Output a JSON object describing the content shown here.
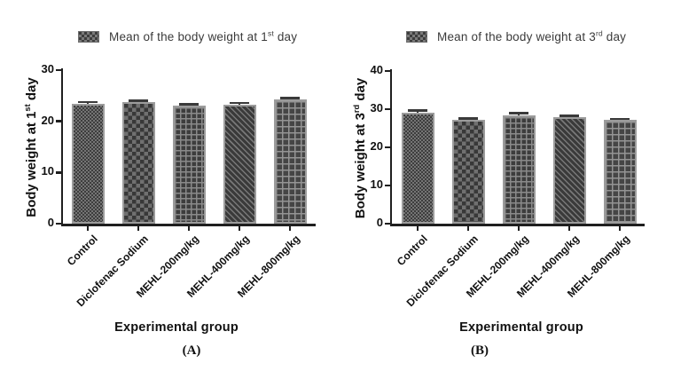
{
  "figure": {
    "background": "#ffffff",
    "panel_labels": [
      "(A)",
      "(B)"
    ]
  },
  "colors": {
    "bar_fill_dark": "#3d3d3d",
    "bar_fill_light": "#757575",
    "bar_border": "#9c9c9c",
    "axis": "#1f1f1f",
    "text": "#111111"
  },
  "patterns": [
    "fine-checker",
    "checkerboard",
    "grid",
    "diagonal-weave",
    "brick"
  ],
  "chart_data": [
    {
      "type": "bar",
      "panel_label": "(A)",
      "legend": {
        "prefix": "Mean of the body weight at 1",
        "sup": "st",
        "suffix": " day"
      },
      "ylabel": {
        "prefix": "Body weight at 1",
        "sup": "st",
        "suffix": " day"
      },
      "xlabel": "Experimental group",
      "categories": [
        "Control",
        "Diclofenac Sodium",
        "MEHL-200mg/kg",
        "MEHL-400mg/kg",
        "MEHL-800mg/kg"
      ],
      "values": [
        23.4,
        23.7,
        23.0,
        23.3,
        24.3
      ],
      "errors": [
        0.35,
        0.35,
        0.3,
        0.3,
        0.2
      ],
      "ylim": [
        0,
        30
      ],
      "yticks": [
        0,
        10,
        20,
        30
      ],
      "grid": false,
      "legend_position": "top"
    },
    {
      "type": "bar",
      "panel_label": "(B)",
      "legend": {
        "prefix": "Mean of the body weight at 3",
        "sup": "rd",
        "suffix": " day"
      },
      "ylabel": {
        "prefix": "Body weight at 3",
        "sup": "rd",
        "suffix": " day"
      },
      "xlabel": "Experimental group",
      "categories": [
        "Control",
        "Diclofenac Sodium",
        "MEHL-200mg/kg",
        "MEHL-400mg/kg",
        "MEHL-800mg/kg"
      ],
      "values": [
        29.0,
        27.2,
        28.4,
        27.8,
        27.1
      ],
      "errors": [
        0.6,
        0.4,
        0.5,
        0.45,
        0.3
      ],
      "ylim": [
        0,
        40
      ],
      "yticks": [
        0,
        10,
        20,
        30,
        40
      ],
      "grid": false,
      "legend_position": "top"
    }
  ]
}
